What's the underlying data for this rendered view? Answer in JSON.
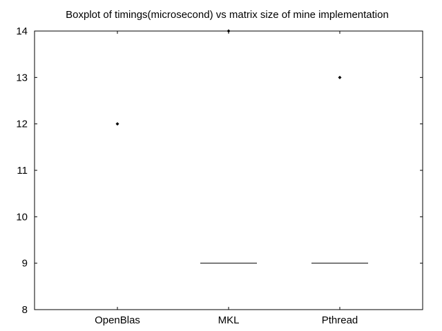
{
  "chart_data": {
    "type": "box",
    "title": "Boxplot of timings(microsecond) vs matrix size of mine implementation",
    "xlabel": "",
    "ylabel": "",
    "ylim": [
      8,
      14
    ],
    "yticks": [
      "8",
      "9",
      "10",
      "11",
      "12",
      "13",
      "14"
    ],
    "categories": [
      "OpenBlas",
      "MKL",
      "Pthread"
    ],
    "series": [
      {
        "name": "OpenBlas",
        "median": 12,
        "outliers": []
      },
      {
        "name": "MKL",
        "median": 9,
        "outliers": [
          14
        ]
      },
      {
        "name": "Pthread",
        "median": 9,
        "outliers": [
          13
        ]
      }
    ],
    "grid": false
  }
}
